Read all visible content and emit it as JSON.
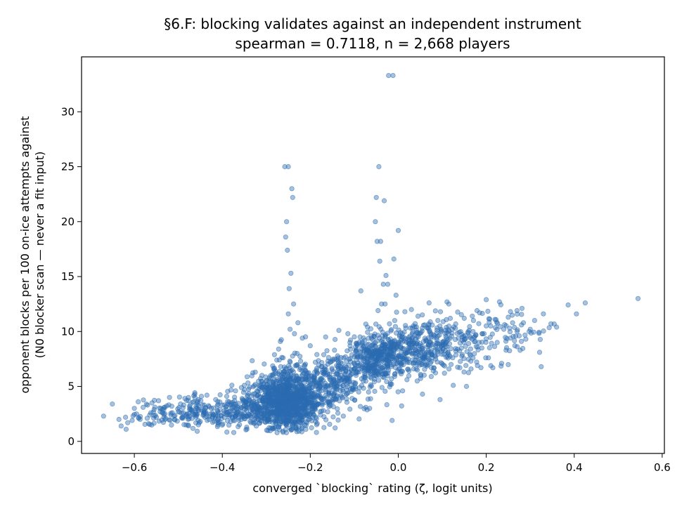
{
  "chart_data": {
    "type": "scatter",
    "title": "§6.F: blocking validates against an independent instrument",
    "subtitle": "spearman = 0.7118, n = 2,668 players",
    "xlabel": "converged `blocking` rating (ζ, logit units)",
    "ylabel_line1": "opponent blocks per 100 on-ice attempts against",
    "ylabel_line2": "(N0 blocker scan — never a fit input)",
    "xlim": [
      -0.72,
      0.605
    ],
    "ylim": [
      -1.1,
      35.0
    ],
    "xticks": [
      -0.6,
      -0.4,
      -0.2,
      0.0,
      0.2,
      0.4,
      0.6
    ],
    "xtick_labels": [
      "−0.6",
      "−0.4",
      "−0.2",
      "0.0",
      "0.2",
      "0.4",
      "0.6"
    ],
    "yticks": [
      0,
      5,
      10,
      15,
      20,
      25,
      30
    ],
    "ytick_labels": [
      "0",
      "5",
      "10",
      "15",
      "20",
      "25",
      "30"
    ],
    "grid": false,
    "marker_color": "#2b6cb0",
    "points": [
      [
        -0.67,
        2.3
      ],
      [
        -0.65,
        3.4
      ],
      [
        -0.635,
        2.0
      ],
      [
        -0.63,
        1.4
      ],
      [
        -0.62,
        2.2
      ],
      [
        -0.615,
        1.7
      ],
      [
        -0.605,
        1.9
      ],
      [
        -0.6,
        3.0
      ],
      [
        -0.595,
        2.5
      ],
      [
        -0.59,
        2.1
      ],
      [
        -0.58,
        3.1
      ],
      [
        -0.57,
        3.3
      ],
      [
        -0.565,
        2.4
      ],
      [
        -0.56,
        3.5
      ],
      [
        -0.555,
        2.9
      ],
      [
        -0.55,
        2.2
      ],
      [
        -0.545,
        3.7
      ],
      [
        -0.54,
        3.0
      ],
      [
        -0.535,
        2.6
      ],
      [
        -0.53,
        2.0
      ],
      [
        -0.52,
        4.0
      ],
      [
        -0.515,
        3.2
      ],
      [
        -0.51,
        2.3
      ],
      [
        -0.5,
        2.7
      ],
      [
        -0.495,
        3.4
      ],
      [
        -0.49,
        2.1
      ],
      [
        -0.485,
        3.9
      ],
      [
        -0.48,
        2.5
      ],
      [
        -0.47,
        2.9
      ],
      [
        -0.465,
        3.6
      ],
      [
        -0.46,
        2.2
      ],
      [
        -0.455,
        2.8
      ],
      [
        -0.45,
        1.8
      ],
      [
        -0.445,
        3.3
      ],
      [
        -0.44,
        2.6
      ],
      [
        -0.435,
        4.2
      ],
      [
        -0.43,
        2.0
      ],
      [
        -0.425,
        3.0
      ],
      [
        -0.42,
        2.4
      ],
      [
        -0.415,
        3.8
      ],
      [
        -0.41,
        1.5
      ],
      [
        -0.405,
        2.9
      ],
      [
        -0.4,
        3.3
      ],
      [
        -0.395,
        2.2
      ],
      [
        -0.39,
        4.1
      ],
      [
        -0.385,
        2.7
      ],
      [
        -0.38,
        3.5
      ],
      [
        -0.375,
        1.9
      ],
      [
        -0.37,
        4.6
      ],
      [
        -0.365,
        3.1
      ],
      [
        -0.36,
        2.5
      ],
      [
        -0.355,
        3.9
      ],
      [
        -0.35,
        5.1
      ],
      [
        -0.345,
        2.8
      ],
      [
        -0.34,
        3.4
      ],
      [
        -0.335,
        1.7
      ],
      [
        -0.33,
        4.3
      ],
      [
        -0.325,
        6.3
      ],
      [
        -0.32,
        2.6
      ],
      [
        -0.315,
        3.7
      ],
      [
        -0.31,
        4.9
      ],
      [
        -0.305,
        2.1
      ],
      [
        -0.3,
        5.5
      ],
      [
        -0.295,
        3.3
      ],
      [
        -0.29,
        1.2
      ],
      [
        -0.285,
        6.1
      ],
      [
        -0.28,
        2.7
      ],
      [
        -0.275,
        4.4
      ],
      [
        -0.272,
        8.4
      ],
      [
        -0.268,
        9.1
      ],
      [
        -0.265,
        3.2
      ],
      [
        -0.262,
        7.6
      ],
      [
        -0.26,
        5.8
      ],
      [
        -0.258,
        25.0
      ],
      [
        -0.256,
        18.6
      ],
      [
        -0.254,
        20.0
      ],
      [
        -0.252,
        17.4
      ],
      [
        -0.25,
        11.6
      ],
      [
        -0.248,
        13.9
      ],
      [
        -0.246,
        10.2
      ],
      [
        -0.244,
        15.3
      ],
      [
        -0.25,
        25.0
      ],
      [
        -0.242,
        23.0
      ],
      [
        -0.24,
        22.2
      ],
      [
        -0.238,
        12.5
      ],
      [
        -0.236,
        9.8
      ],
      [
        -0.234,
        6.9
      ],
      [
        -0.232,
        3.8
      ],
      [
        -0.23,
        8.0
      ],
      [
        -0.228,
        10.8
      ],
      [
        -0.226,
        5.2
      ],
      [
        -0.224,
        2.4
      ],
      [
        -0.222,
        7.3
      ],
      [
        -0.22,
        4.7
      ],
      [
        -0.218,
        9.4
      ],
      [
        -0.215,
        3.5
      ],
      [
        -0.21,
        6.4
      ],
      [
        -0.205,
        2.0
      ],
      [
        -0.2,
        8.7
      ],
      [
        -0.195,
        5.6
      ],
      [
        -0.19,
        3.1
      ],
      [
        -0.185,
        7.9
      ],
      [
        -0.18,
        4.2
      ],
      [
        -0.175,
        6.8
      ],
      [
        -0.17,
        2.8
      ],
      [
        -0.165,
        9.5
      ],
      [
        -0.16,
        5.0
      ],
      [
        -0.155,
        7.2
      ],
      [
        -0.15,
        3.6
      ],
      [
        -0.145,
        8.3
      ],
      [
        -0.14,
        4.8
      ],
      [
        -0.135,
        10.1
      ],
      [
        -0.13,
        6.0
      ],
      [
        -0.125,
        2.3
      ],
      [
        -0.12,
        7.7
      ],
      [
        -0.115,
        5.4
      ],
      [
        -0.11,
        9.0
      ],
      [
        -0.105,
        3.9
      ],
      [
        -0.1,
        6.6
      ],
      [
        -0.095,
        8.9
      ],
      [
        -0.09,
        4.5
      ],
      [
        -0.085,
        13.7
      ],
      [
        -0.08,
        7.0
      ],
      [
        -0.075,
        5.8
      ],
      [
        -0.07,
        10.4
      ],
      [
        -0.065,
        3.0
      ],
      [
        -0.06,
        8.2
      ],
      [
        -0.055,
        6.3
      ],
      [
        -0.052,
        20.0
      ],
      [
        -0.05,
        22.2
      ],
      [
        -0.048,
        18.2
      ],
      [
        -0.046,
        11.9
      ],
      [
        -0.044,
        25.0
      ],
      [
        -0.042,
        16.4
      ],
      [
        -0.04,
        18.2
      ],
      [
        -0.038,
        12.5
      ],
      [
        -0.036,
        9.6
      ],
      [
        -0.034,
        14.3
      ],
      [
        -0.032,
        21.9
      ],
      [
        -0.03,
        12.5
      ],
      [
        -0.028,
        15.1
      ],
      [
        -0.026,
        7.4
      ],
      [
        -0.024,
        14.3
      ],
      [
        -0.022,
        33.3
      ],
      [
        -0.02,
        10.7
      ],
      [
        -0.018,
        5.3
      ],
      [
        -0.016,
        8.8
      ],
      [
        -0.014,
        1.9
      ],
      [
        -0.012,
        33.3
      ],
      [
        -0.01,
        16.6
      ],
      [
        -0.008,
        6.1
      ],
      [
        -0.005,
        13.3
      ],
      [
        0.0,
        19.2
      ],
      [
        0.005,
        9.9
      ],
      [
        0.01,
        4.6
      ],
      [
        0.015,
        11.8
      ],
      [
        0.02,
        7.3
      ],
      [
        0.025,
        8.5
      ],
      [
        0.03,
        12.0
      ],
      [
        0.035,
        6.6
      ],
      [
        0.04,
        9.3
      ],
      [
        0.045,
        11.4
      ],
      [
        0.05,
        7.8
      ],
      [
        0.055,
        4.3
      ],
      [
        0.06,
        10.6
      ],
      [
        0.065,
        8.1
      ],
      [
        0.07,
        12.6
      ],
      [
        0.075,
        5.9
      ],
      [
        0.08,
        9.7
      ],
      [
        0.085,
        7.5
      ],
      [
        0.09,
        11.0
      ],
      [
        0.095,
        3.8
      ],
      [
        0.1,
        8.8
      ],
      [
        0.105,
        6.2
      ],
      [
        0.11,
        9.9
      ],
      [
        0.115,
        12.5
      ],
      [
        0.12,
        7.0
      ],
      [
        0.125,
        5.1
      ],
      [
        0.13,
        10.3
      ],
      [
        0.135,
        8.4
      ],
      [
        0.14,
        6.7
      ],
      [
        0.145,
        9.5
      ],
      [
        0.15,
        11.2
      ],
      [
        0.155,
        5.0
      ],
      [
        0.16,
        8.9
      ],
      [
        0.165,
        7.3
      ],
      [
        0.17,
        10.0
      ],
      [
        0.175,
        9.1
      ],
      [
        0.18,
        6.9
      ],
      [
        0.185,
        11.7
      ],
      [
        0.19,
        8.5
      ],
      [
        0.195,
        9.8
      ],
      [
        0.2,
        12.9
      ],
      [
        0.205,
        7.6
      ],
      [
        0.21,
        10.5
      ],
      [
        0.215,
        6.7
      ],
      [
        0.22,
        11.1
      ],
      [
        0.225,
        9.0
      ],
      [
        0.23,
        12.7
      ],
      [
        0.235,
        7.1
      ],
      [
        0.24,
        10.2
      ],
      [
        0.245,
        8.3
      ],
      [
        0.25,
        11.3
      ],
      [
        0.255,
        9.4
      ],
      [
        0.26,
        10.8
      ],
      [
        0.265,
        8.7
      ],
      [
        0.27,
        11.9
      ],
      [
        0.275,
        9.6
      ],
      [
        0.28,
        10.6
      ],
      [
        0.29,
        9.3
      ],
      [
        0.3,
        10.2
      ],
      [
        0.31,
        11.0
      ],
      [
        0.325,
        6.8
      ],
      [
        0.33,
        11.6
      ],
      [
        0.36,
        10.4
      ],
      [
        0.405,
        11.6
      ],
      [
        0.425,
        12.6
      ],
      [
        0.545,
        13.0
      ]
    ]
  }
}
